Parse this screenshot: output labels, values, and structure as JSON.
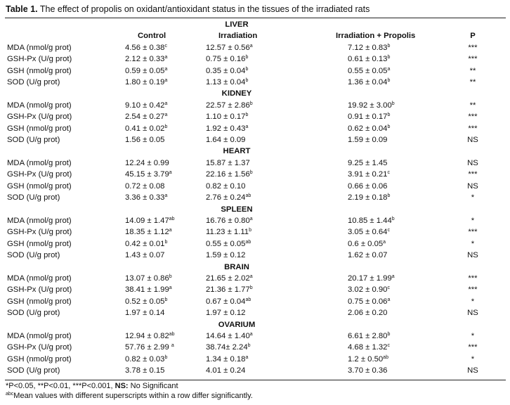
{
  "caption": {
    "bold": "Table 1.",
    "text": " The effect of propolis on oxidant/antioxidant status in the tissues of the irradiated rats"
  },
  "headers": {
    "control": "Control",
    "irradiation": "Irradiation",
    "combo": "Irradiation + Propolis",
    "p": "P"
  },
  "sections": [
    {
      "name": "LIVER",
      "rows": [
        {
          "label": "MDA (nmol/g prot)",
          "c": [
            "4.56 ± 0.38",
            "c"
          ],
          "i": [
            "12.57 ± 0.56",
            "a"
          ],
          "ip": [
            "7.12 ± 0.83",
            "b"
          ],
          "p": "***"
        },
        {
          "label": "GSH-Px (U/g prot)",
          "c": [
            "2.12 ± 0.33",
            "a"
          ],
          "i": [
            "0.75 ± 0.16",
            "b"
          ],
          "ip": [
            "0.61 ± 0.13",
            "b"
          ],
          "p": "***"
        },
        {
          "label": "GSH (nmol/g prot)",
          "c": [
            "0.59 ± 0.05",
            "a"
          ],
          "i": [
            "0.35 ± 0.04",
            "b"
          ],
          "ip": [
            "0.55 ± 0.05",
            "a"
          ],
          "p": "**"
        },
        {
          "label": "SOD (U/g prot)",
          "c": [
            "1.80 ± 0.19",
            "a"
          ],
          "i": [
            "1.13 ± 0.04",
            "b"
          ],
          "ip": [
            "1.36 ± 0.04",
            "b"
          ],
          "p": "**"
        }
      ]
    },
    {
      "name": "KIDNEY",
      "rows": [
        {
          "label": "MDA (nmol/g prot)",
          "c": [
            "9.10 ± 0.42",
            "a"
          ],
          "i": [
            "22.57 ± 2.86",
            "b"
          ],
          "ip": [
            "19.92 ± 3.00",
            "b"
          ],
          "p": "**"
        },
        {
          "label": "GSH-Px (U/g prot)",
          "c": [
            "2.54 ± 0.27",
            "a"
          ],
          "i": [
            "1.10 ± 0.17",
            "b"
          ],
          "ip": [
            "0.91 ± 0.17",
            "b"
          ],
          "p": "***"
        },
        {
          "label": "GSH (nmol/g prot)",
          "c": [
            "0.41 ± 0.02",
            "b"
          ],
          "i": [
            "1.92 ± 0.43",
            "a"
          ],
          "ip": [
            "0.62 ± 0.04",
            "b"
          ],
          "p": "***"
        },
        {
          "label": "SOD (U/g prot)",
          "c": [
            "1.56 ± 0.05",
            ""
          ],
          "i": [
            "1.64 ± 0.09",
            ""
          ],
          "ip": [
            "1.59 ± 0.09",
            ""
          ],
          "p": "NS"
        }
      ]
    },
    {
      "name": "HEART",
      "rows": [
        {
          "label": "MDA (nmol/g prot)",
          "c": [
            "12.24 ± 0.99",
            ""
          ],
          "i": [
            "15.87 ± 1.37",
            ""
          ],
          "ip": [
            "9.25 ± 1.45",
            ""
          ],
          "p": "NS"
        },
        {
          "label": "GSH-Px (U/g prot)",
          "c": [
            "45.15 ± 3.79",
            "a"
          ],
          "i": [
            "22.16 ± 1.56",
            "b"
          ],
          "ip": [
            "3.91 ± 0.21",
            "c"
          ],
          "p": "***"
        },
        {
          "label": "GSH (nmol/g prot)",
          "c": [
            "0.72 ± 0.08",
            ""
          ],
          "i": [
            "0.82 ± 0.10",
            ""
          ],
          "ip": [
            "0.66 ± 0.06",
            ""
          ],
          "p": "NS"
        },
        {
          "label": "SOD (U/g prot)",
          "c": [
            "3.36 ± 0.33",
            "a"
          ],
          "i": [
            "2.76 ± 0.24",
            "ab"
          ],
          "ip": [
            "2.19 ± 0.18",
            "b"
          ],
          "p": "*"
        }
      ]
    },
    {
      "name": "SPLEEN",
      "rows": [
        {
          "label": "MDA (nmol/g prot)",
          "c": [
            "14.09 ± 1.47",
            "ab"
          ],
          "i": [
            "16.76 ± 0.80",
            "a"
          ],
          "ip": [
            "10.85 ± 1.44",
            "b"
          ],
          "p": "*"
        },
        {
          "label": "GSH-Px (U/g prot)",
          "c": [
            "18.35 ± 1.12",
            "a"
          ],
          "i": [
            "11.23 ± 1.11",
            "b"
          ],
          "ip": [
            "3.05 ± 0.64",
            "c"
          ],
          "p": "***"
        },
        {
          "label": "GSH (nmol/g prot)",
          "c": [
            "0.42 ± 0.01",
            "b"
          ],
          "i": [
            "0.55 ± 0.05",
            "ab"
          ],
          "ip": [
            "0.6 ± 0.05",
            "a"
          ],
          "p": "*"
        },
        {
          "label": "SOD (U/g prot)",
          "c": [
            "1.43 ± 0.07",
            ""
          ],
          "i": [
            "1.59 ± 0.12",
            ""
          ],
          "ip": [
            "1.62 ± 0.07",
            ""
          ],
          "p": "NS"
        }
      ]
    },
    {
      "name": "BRAIN",
      "rows": [
        {
          "label": "MDA (nmol/g prot)",
          "c": [
            "13.07 ± 0.86",
            "b"
          ],
          "i": [
            "21.65 ± 2.02",
            "a"
          ],
          "ip": [
            "20.17 ± 1.99",
            "a"
          ],
          "p": "***"
        },
        {
          "label": "GSH-Px (U/g prot)",
          "c": [
            "38.41 ± 1.99",
            "a"
          ],
          "i": [
            "21.36 ± 1.77",
            "b"
          ],
          "ip": [
            "3.02 ± 0.90",
            "c"
          ],
          "p": "***"
        },
        {
          "label": "GSH (nmol/g prot)",
          "c": [
            "0.52 ± 0.05",
            "b"
          ],
          "i": [
            "0.67 ± 0.04",
            "ab"
          ],
          "ip": [
            "0.75 ± 0.06",
            "a"
          ],
          "p": "*"
        },
        {
          "label": "SOD (U/g prot)",
          "c": [
            "1.97 ± 0.14",
            ""
          ],
          "i": [
            "1.97 ± 0.12",
            ""
          ],
          "ip": [
            "2.06 ± 0.20",
            ""
          ],
          "p": "NS"
        }
      ]
    },
    {
      "name": "OVARIUM",
      "rows": [
        {
          "label": "MDA (nmol/g prot)",
          "c": [
            "12.94 ± 0.82",
            "ab"
          ],
          "i": [
            "14.64 ± 1.40",
            "a"
          ],
          "ip": [
            "6.61 ± 2.80",
            "b"
          ],
          "p": "*"
        },
        {
          "label": "GSH-Px (U/g prot)",
          "c": [
            "57.76 ± 2.99 ",
            "a"
          ],
          "i": [
            "38.74± 2.24",
            "b"
          ],
          "ip": [
            "4.68 ± 1.32",
            "c"
          ],
          "p": "***"
        },
        {
          "label": "GSH (nmol/g prot)",
          "c": [
            "0.82 ± 0.03",
            "b"
          ],
          "i": [
            "1.34 ± 0.18",
            "a"
          ],
          "ip": [
            "1.2 ± 0.50",
            "ab"
          ],
          "p": "*"
        },
        {
          "label": "SOD (U/g prot)",
          "c": [
            "3.78 ± 0.15",
            ""
          ],
          "i": [
            "4.01 ± 0.24",
            ""
          ],
          "ip": [
            "3.70 ± 0.36",
            ""
          ],
          "p": "NS"
        }
      ]
    }
  ],
  "footnotes": {
    "line1_a": "*P<0.05, **P<0.01, ***P<0.001, ",
    "line1_ns": "NS:",
    "line1_b": " No Significant",
    "line2_sup": "abc",
    "line2_text": "Mean values with different superscripts within a row differ significantly."
  }
}
